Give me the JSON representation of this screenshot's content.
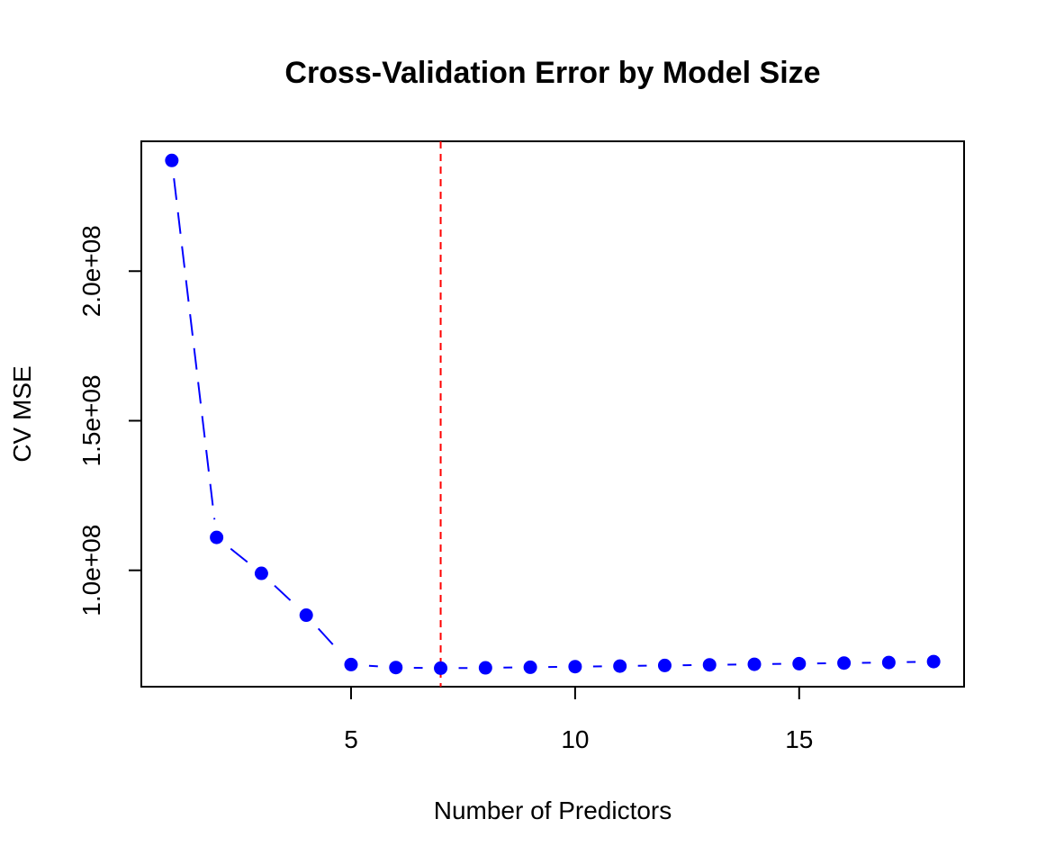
{
  "chart_data": {
    "type": "line",
    "title": "Cross-Validation Error by Model Size",
    "xlabel": "Number of Predictors",
    "ylabel": "CV MSE",
    "x": [
      1,
      2,
      3,
      4,
      5,
      6,
      7,
      8,
      9,
      10,
      11,
      12,
      13,
      14,
      15,
      16,
      17,
      18
    ],
    "series": [
      {
        "values": [
          237000000,
          111000000,
          99000000,
          85000000,
          68500000,
          67500000,
          67300000,
          67400000,
          67600000,
          67800000,
          68000000,
          68200000,
          68400000,
          68600000,
          68800000,
          69000000,
          69200000,
          69500000
        ],
        "color": "#0000ff",
        "line_style": "dashed",
        "marker": "filled-circle"
      }
    ],
    "x_ticks": [
      5,
      10,
      15
    ],
    "x_tick_labels": [
      "5",
      "10",
      "15"
    ],
    "y_ticks": [
      100000000,
      150000000,
      200000000
    ],
    "y_tick_labels": [
      "1.0e+08",
      "1.5e+08",
      "2.0e+08"
    ],
    "xlim": [
      0.32,
      18.68
    ],
    "ylim": [
      61100000,
      243400000
    ],
    "reference_line": {
      "axis": "x",
      "value": 7,
      "color": "#ff0000",
      "line_style": "dashed"
    },
    "grid": false,
    "legend": "none"
  }
}
